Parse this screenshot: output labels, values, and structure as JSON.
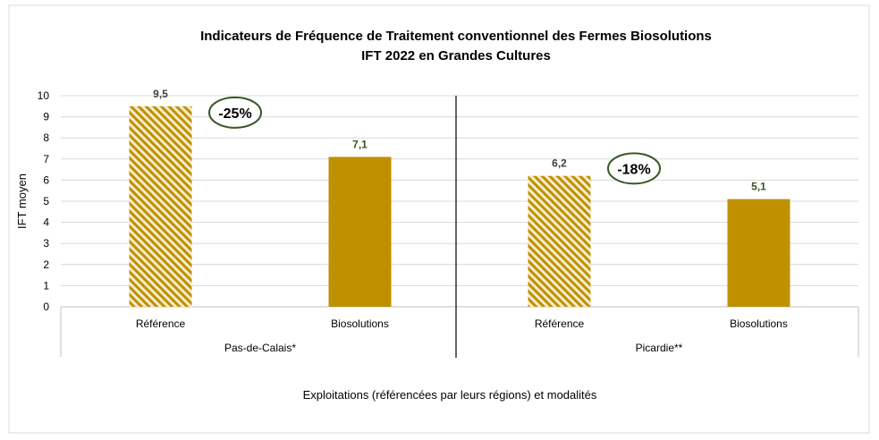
{
  "chart_data": {
    "type": "bar",
    "title": "Indicateurs de Fréquence de Traitement conventionnel des Fermes Biosolutions",
    "subtitle": "IFT 2022 en Grandes Cultures",
    "ylabel": "IFT moyen",
    "xlabel": "Exploitations (référencées par leurs régions) et modalités",
    "ylim": [
      0,
      10
    ],
    "yticks": [
      0,
      1,
      2,
      3,
      4,
      5,
      6,
      7,
      8,
      9,
      10
    ],
    "grid": true,
    "groups": [
      {
        "name": "Pas-de-Calais*",
        "reduction_label": "-25%",
        "bars": [
          {
            "category": "Référence",
            "value": 9.5,
            "value_label": "9,5",
            "style": "hatched"
          },
          {
            "category": "Biosolutions",
            "value": 7.1,
            "value_label": "7,1",
            "style": "solid"
          }
        ]
      },
      {
        "name": "Picardie**",
        "reduction_label": "-18%",
        "bars": [
          {
            "category": "Référence",
            "value": 6.2,
            "value_label": "6,2",
            "style": "hatched"
          },
          {
            "category": "Biosolutions",
            "value": 5.1,
            "value_label": "5,1",
            "style": "solid"
          }
        ]
      }
    ],
    "colors": {
      "bar": "#bf9000",
      "hatch_light": "#f5eccb",
      "value_label_reference": "#404040",
      "value_label_biosolutions": "#375623",
      "ellipse": "#375623"
    }
  }
}
